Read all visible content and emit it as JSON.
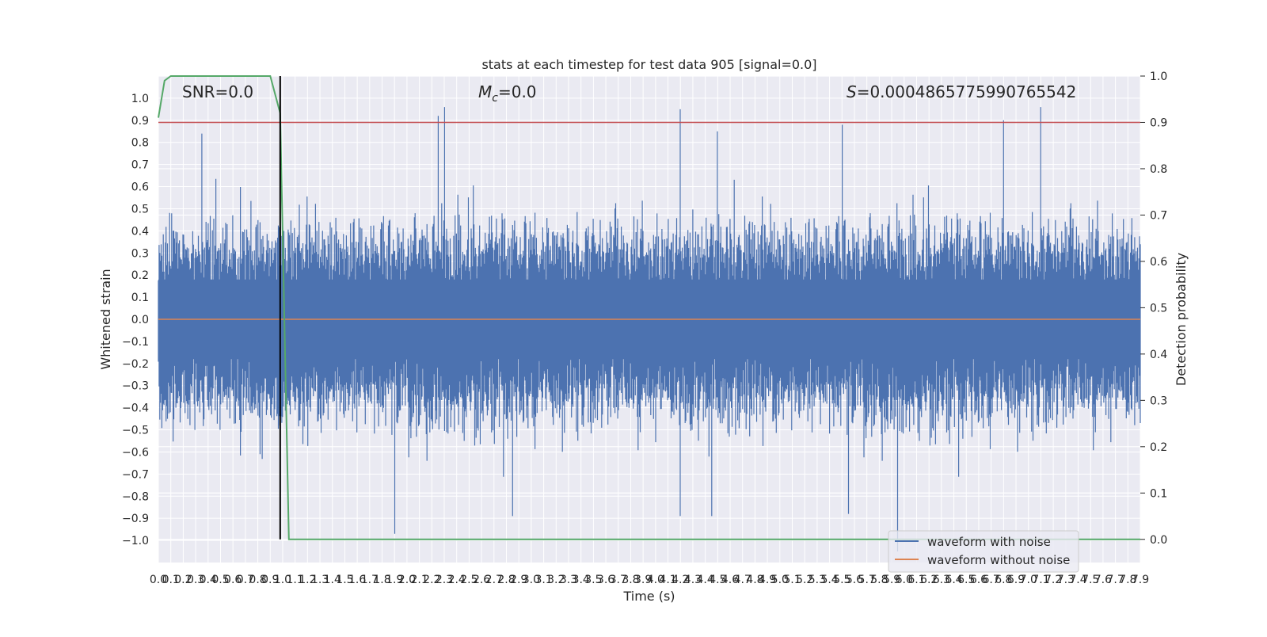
{
  "chart_data": {
    "type": "line",
    "title": "stats at each timestep for test data 905 [signal=0.0]",
    "xlabel": "Time (s)",
    "ylabel": "Whitened strain",
    "y2label": "Detection probability",
    "xlim": [
      0.0,
      7.9
    ],
    "ylim": [
      -1.1,
      1.1
    ],
    "y2lim": [
      -0.05,
      1.0
    ],
    "x_ticks": [
      "0.0",
      "0.1",
      "0.2",
      "0.3",
      "0.4",
      "0.5",
      "0.6",
      "0.7",
      "0.8",
      "0.9",
      "1.0",
      "1.1",
      "1.2",
      "1.3",
      "1.4",
      "1.5",
      "1.6",
      "1.7",
      "1.8",
      "1.9",
      "2.0",
      "2.1",
      "2.2",
      "2.3",
      "2.4",
      "2.5",
      "2.6",
      "2.7",
      "2.8",
      "2.9",
      "3.0",
      "3.1",
      "3.2",
      "3.3",
      "3.4",
      "3.5",
      "3.6",
      "3.7",
      "3.8",
      "3.9",
      "4.0",
      "4.1",
      "4.2",
      "4.3",
      "4.4",
      "4.5",
      "4.6",
      "4.7",
      "4.8",
      "4.9",
      "5.0",
      "5.1",
      "5.2",
      "5.3",
      "5.4",
      "5.5",
      "5.6",
      "5.7",
      "5.8",
      "5.9",
      "6.0",
      "6.1",
      "6.2",
      "6.3",
      "6.4",
      "6.5",
      "6.6",
      "6.7",
      "6.8",
      "6.9",
      "7.0",
      "7.1",
      "7.2",
      "7.3",
      "7.4",
      "7.5",
      "7.6",
      "7.7",
      "7.8",
      "7.9"
    ],
    "y_ticks": [
      "1.0",
      "0.9",
      "0.8",
      "0.7",
      "0.6",
      "0.5",
      "0.4",
      "0.3",
      "0.2",
      "0.1",
      "0.0",
      "−0.1",
      "−0.2",
      "−0.3",
      "−0.4",
      "−0.5",
      "−0.6",
      "−0.7",
      "−0.8",
      "−0.9",
      "−1.0"
    ],
    "y2_ticks": [
      "1.0",
      "0.9",
      "0.8",
      "0.7",
      "0.6",
      "0.5",
      "0.4",
      "0.3",
      "0.2",
      "0.1",
      "0.0"
    ],
    "annotations": {
      "snr": "SNR=0.0",
      "mc_symbol": "M",
      "mc_sub": "c",
      "mc_value": "=0.0",
      "s_symbol": "S",
      "s_value": "=0.0004865775990765542"
    },
    "series": [
      {
        "name": "waveform with noise",
        "color": "#4c72b0",
        "style": "noise",
        "envelope_hi_approx": 0.4,
        "envelope_lo_approx": -0.45,
        "notable_peaks": [
          {
            "x": 0.35,
            "y": 0.84
          },
          {
            "x": 2.3,
            "y": 0.96
          },
          {
            "x": 2.25,
            "y": 0.92
          },
          {
            "x": 4.2,
            "y": 0.95
          },
          {
            "x": 4.5,
            "y": 0.85
          },
          {
            "x": 5.5,
            "y": 0.88
          },
          {
            "x": 6.8,
            "y": 0.9
          },
          {
            "x": 7.1,
            "y": 0.96
          }
        ],
        "notable_troughs": [
          {
            "x": 1.9,
            "y": -0.97
          },
          {
            "x": 2.85,
            "y": -0.89
          },
          {
            "x": 4.2,
            "y": -0.89
          },
          {
            "x": 4.45,
            "y": -0.89
          },
          {
            "x": 5.55,
            "y": -0.88
          },
          {
            "x": 5.95,
            "y": -1.05
          }
        ]
      },
      {
        "name": "waveform without noise",
        "color": "#dd8452",
        "x": [
          0.0,
          7.9
        ],
        "y": [
          0.0,
          0.0
        ]
      },
      {
        "name": "",
        "axis": "right",
        "color": "#55a868",
        "x": [
          0.0,
          0.05,
          0.1,
          0.2,
          0.9,
          0.98,
          1.05,
          7.9
        ],
        "y": [
          0.91,
          0.99,
          1.0,
          1.0,
          1.0,
          0.92,
          0.0,
          0.0
        ]
      }
    ],
    "hlines": [
      {
        "axis": "right",
        "y": 0.9,
        "color": "#c44e52"
      }
    ],
    "vlines": [
      {
        "x": 0.98,
        "y2_from": 0.0,
        "y2_to": 1.0,
        "color": "#000000"
      }
    ],
    "legend": {
      "position": "lower-right",
      "entries": [
        {
          "label": "waveform with noise",
          "color": "#4c72b0"
        },
        {
          "label": "waveform without noise",
          "color": "#dd8452"
        }
      ]
    },
    "grid": true,
    "style": {
      "background": "#eaeaf2",
      "grid_color": "#ffffff"
    }
  }
}
